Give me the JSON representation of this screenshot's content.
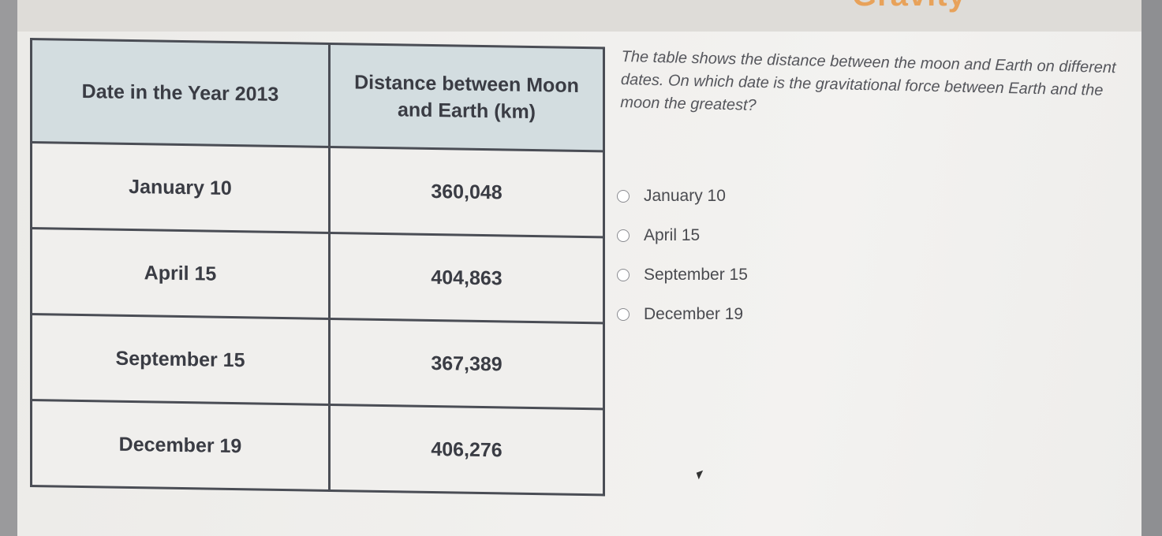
{
  "header": {
    "title_fragment": "Gravity"
  },
  "table": {
    "headers": [
      "Date in the Year 2013",
      "Distance between Moon and Earth (km)"
    ],
    "rows": [
      {
        "date": "January 10",
        "distance": "360,048"
      },
      {
        "date": "April 15",
        "distance": "404,863"
      },
      {
        "date": "September 15",
        "distance": "367,389"
      },
      {
        "date": "December 19",
        "distance": "406,276"
      }
    ]
  },
  "question": {
    "text": "The table shows the distance between the moon and Earth on different dates. On which date is the gravitational force between Earth and the moon the greatest?",
    "options": [
      "January 10",
      "April 15",
      "September 15",
      "December 19"
    ]
  },
  "colors": {
    "header_bg": "#d3dde0",
    "title": "#e8a25a"
  }
}
